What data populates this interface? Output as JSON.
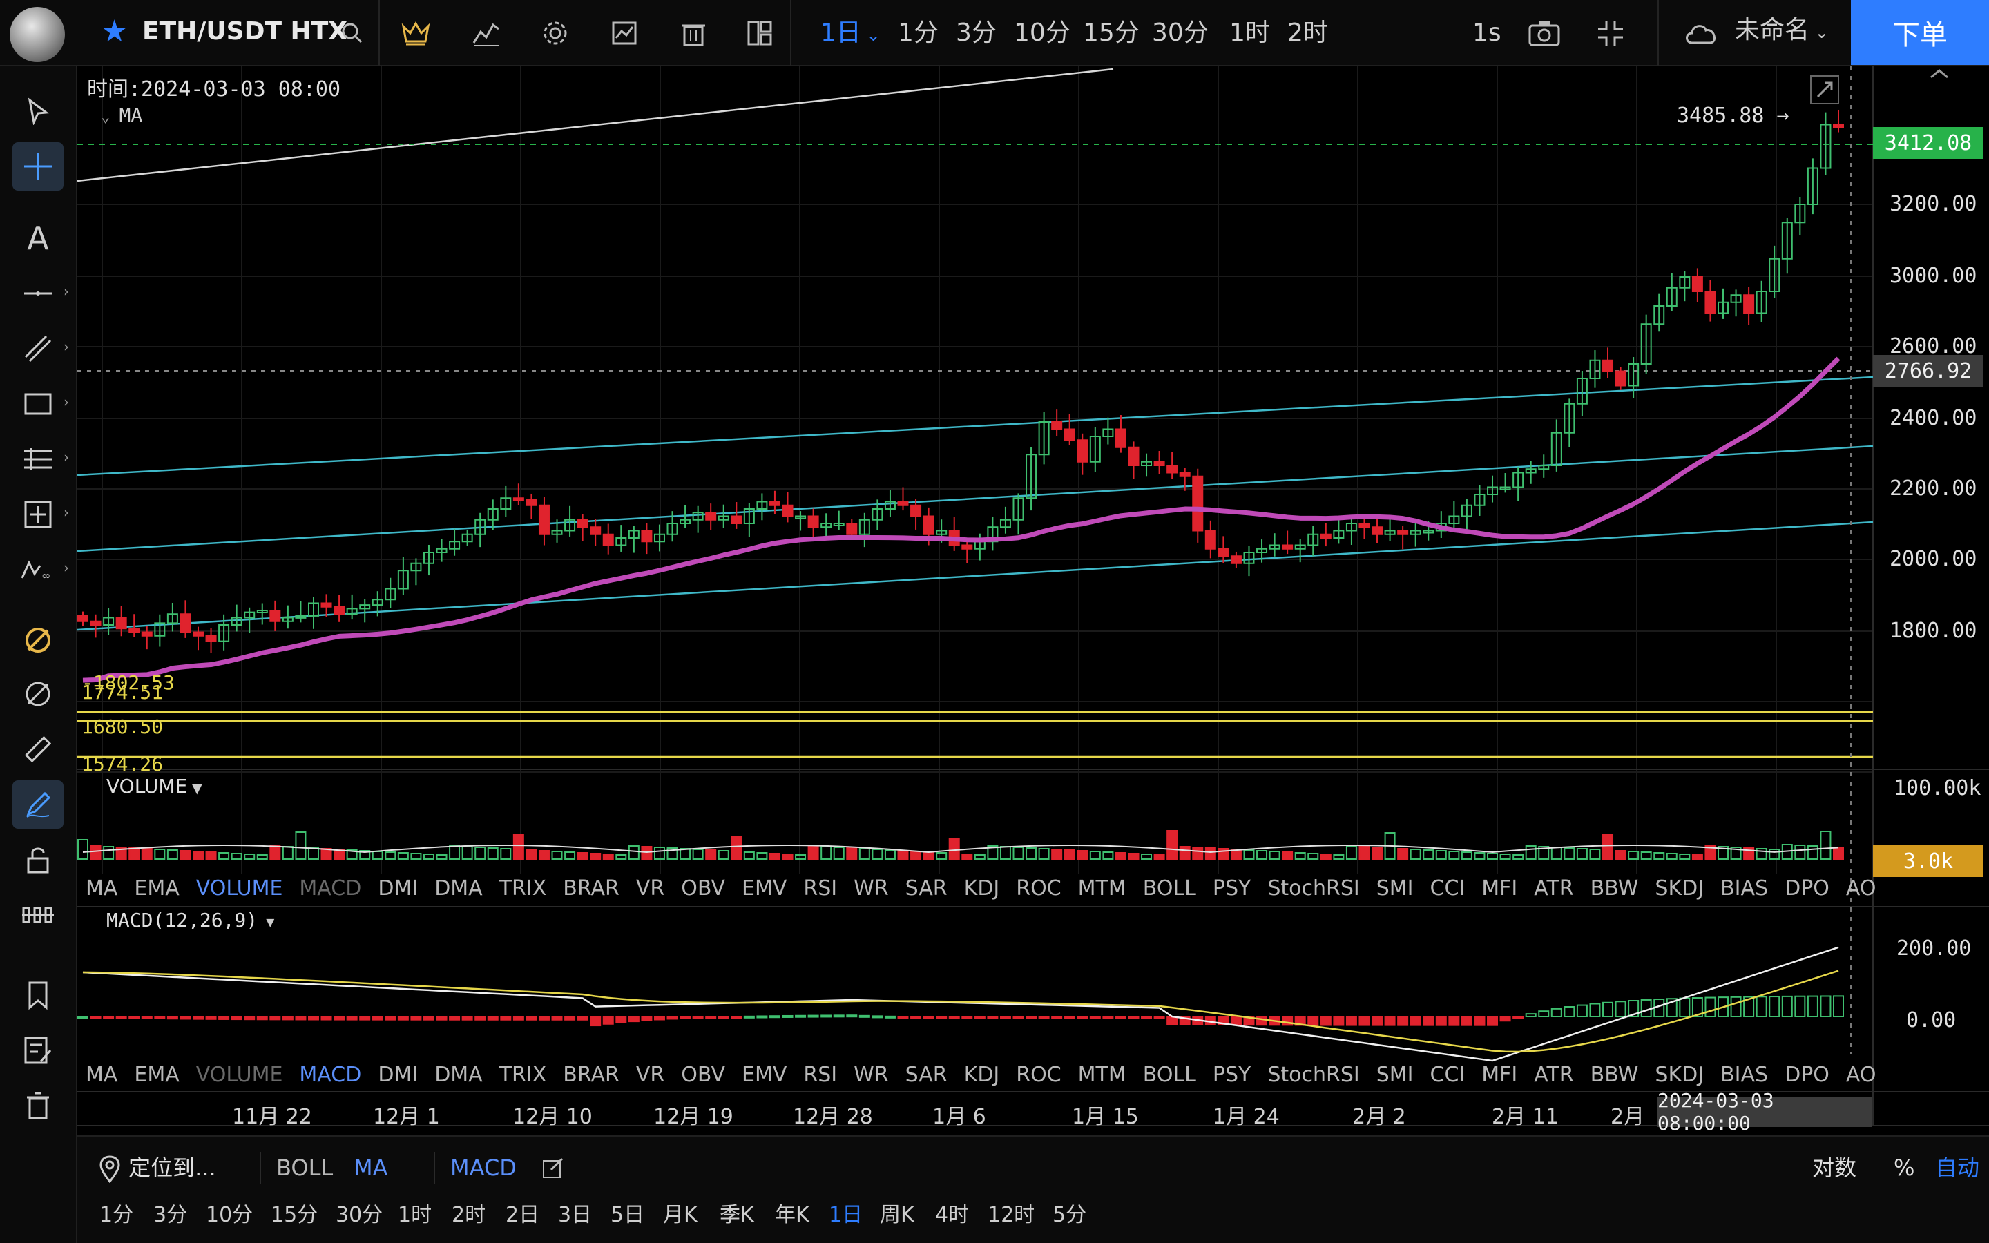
{
  "header": {
    "symbol": "ETH/USDT HTX",
    "active_interval": "1日",
    "intervals": [
      "1分",
      "3分",
      "10分",
      "15分",
      "30分",
      "1时",
      "2时"
    ],
    "refresh": "1s",
    "account": "未命名",
    "order_button": "下单"
  },
  "chart": {
    "time_label": "时间:2024-03-03 08:00",
    "ma_label": "MA",
    "high_marker": "3485.88 →",
    "current_price_tag": "3412.08",
    "crosshair_price_tag": "2766.92",
    "price_axis": [
      "3200.00",
      "3000.00",
      "2600.00",
      "2400.00",
      "2200.00",
      "2000.00",
      "1800.00"
    ],
    "level_labels": [
      "1774.51",
      "1680.50",
      "1574.26"
    ],
    "overlapped_label": "-1802.53",
    "volume_label": "VOLUME",
    "volume_axis_top": "100.00k",
    "volume_tag": "3.0k",
    "macd_label": "MACD(12,26,9)",
    "macd_axis": [
      "200.00",
      "0.00"
    ],
    "date_axis": [
      "11月 22",
      "12月 1",
      "12月 10",
      "12月 19",
      "12月 28",
      "1月 6",
      "1月 15",
      "1月 24",
      "2月 2",
      "2月 11",
      "2月"
    ],
    "crosshair_date": "2024-03-03 08:00:00",
    "colors": {
      "up": "#3fbf6f",
      "down": "#e0232d",
      "ma": "#c04ab8",
      "channel": "#3fb8c8",
      "level": "#e6d74a",
      "current": "#27b24a"
    }
  },
  "indicator_tabs": [
    "MA",
    "EMA",
    "VOLUME",
    "MACD",
    "DMI",
    "DMA",
    "TRIX",
    "BRAR",
    "VR",
    "OBV",
    "EMV",
    "RSI",
    "WR",
    "SAR",
    "KDJ",
    "ROC",
    "MTM",
    "BOLL",
    "PSY",
    "StochRSI",
    "SMI",
    "CCI",
    "MFI",
    "ATR",
    "BBW",
    "SKDJ",
    "BIAS",
    "DPO",
    "AO"
  ],
  "bottom": {
    "locate": "定位到...",
    "overlays": [
      "BOLL",
      "MA"
    ],
    "sub_indicator": "MACD",
    "log_label": "对数",
    "percent_label": "%",
    "auto_label": "自动",
    "periods": [
      "1分",
      "3分",
      "10分",
      "15分",
      "30分",
      "1时",
      "2时",
      "2日",
      "3日",
      "5日",
      "月K",
      "季K",
      "年K",
      "1日",
      "周K",
      "4时",
      "12时",
      "5分"
    ],
    "active_period": "1日"
  }
}
